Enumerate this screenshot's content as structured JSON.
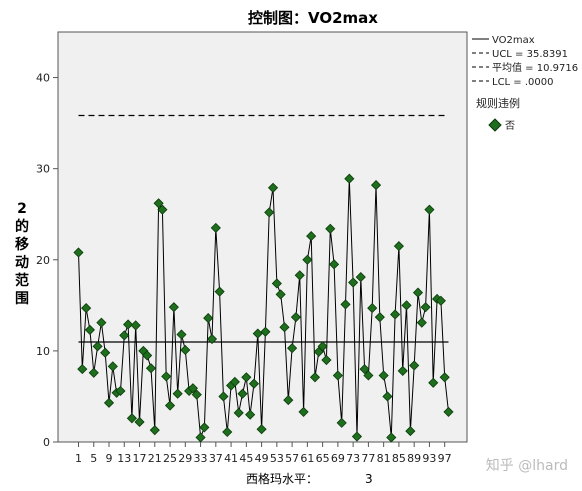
{
  "chart_data": {
    "type": "line",
    "title": "控制图：VO2max",
    "ylabel": "2的移动范围",
    "xlabel": "西格玛水平：",
    "sigma_value": "3",
    "ylim": [
      0,
      45
    ],
    "y_ticks": [
      0,
      10,
      20,
      30,
      40
    ],
    "x_ticks": [
      1,
      5,
      9,
      13,
      17,
      21,
      25,
      29,
      33,
      37,
      41,
      45,
      49,
      53,
      57,
      61,
      65,
      69,
      73,
      77,
      81,
      85,
      89,
      93,
      97
    ],
    "xlim": [
      0,
      102
    ],
    "ucl": 35.8391,
    "mean": 10.9716,
    "lcl": 0,
    "legend": {
      "series": "VO2max",
      "ucl": "UCL = 35.8391",
      "mean": "平均值 = 10.9716",
      "lcl": "LCL = .0000",
      "rule_title": "规则违例",
      "rule_item": "否"
    },
    "series": [
      {
        "name": "VO2max",
        "x": [
          1,
          2,
          3,
          4,
          5,
          6,
          7,
          8,
          9,
          10,
          11,
          12,
          13,
          14,
          15,
          16,
          17,
          18,
          19,
          20,
          21,
          22,
          23,
          24,
          25,
          26,
          27,
          28,
          29,
          30,
          31,
          32,
          33,
          34,
          35,
          36,
          37,
          38,
          39,
          40,
          41,
          42,
          43,
          44,
          45,
          46,
          47,
          48,
          49,
          50,
          51,
          52,
          53,
          54,
          55,
          56,
          57,
          58,
          59,
          60,
          61,
          62,
          63,
          64,
          65,
          66,
          67,
          68,
          69,
          70,
          71,
          72,
          73,
          74,
          75,
          76,
          77,
          78,
          79,
          80,
          81,
          82,
          83,
          84,
          85,
          86,
          87,
          88,
          89,
          90,
          91,
          92,
          93,
          94,
          95,
          96,
          97,
          98
        ],
        "values": [
          20.8,
          8.0,
          14.7,
          12.3,
          7.6,
          10.5,
          13.1,
          9.8,
          4.3,
          8.3,
          5.4,
          5.6,
          11.7,
          12.9,
          2.6,
          12.8,
          2.2,
          10.0,
          9.5,
          8.1,
          1.3,
          26.2,
          25.5,
          7.2,
          4.0,
          14.8,
          5.3,
          11.8,
          10.1,
          5.6,
          5.9,
          5.2,
          0.5,
          1.6,
          13.6,
          11.3,
          23.5,
          16.5,
          5.0,
          1.1,
          6.2,
          6.6,
          3.2,
          5.3,
          7.1,
          3.0,
          6.4,
          11.9,
          1.4,
          12.1,
          25.2,
          27.9,
          17.4,
          16.2,
          12.6,
          4.6,
          10.3,
          13.7,
          18.3,
          3.3,
          20.0,
          22.6,
          7.1,
          9.9,
          10.5,
          9.0,
          23.4,
          19.5,
          7.3,
          2.1,
          15.1,
          28.9,
          17.5,
          0.6,
          18.1,
          8.0,
          7.3,
          14.7,
          28.2,
          13.7,
          7.3,
          5.0,
          0.5,
          14.0,
          21.5,
          7.8,
          15.0,
          1.2,
          8.4,
          16.4,
          13.1,
          14.8,
          25.5,
          6.5,
          15.7,
          15.5,
          7.1,
          3.3
        ]
      }
    ],
    "grid": false,
    "legend_position": "right",
    "colors": {
      "marker_fill": "#1e6e1e",
      "marker_stroke": "#0a3a0a",
      "plot_background": "#f0f0f0"
    }
  },
  "watermark": "知乎 @lhard"
}
